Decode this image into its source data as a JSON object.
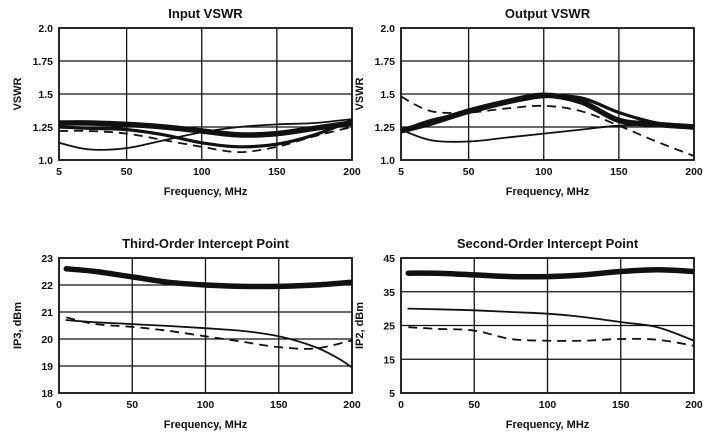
{
  "chart_data": [
    {
      "type": "line",
      "title": "Input VSWR",
      "xlabel": "Frequency, MHz",
      "ylabel": "VSWR",
      "xlim": [
        5,
        200
      ],
      "ylim": [
        1.0,
        2.0
      ],
      "xticks": [
        "5",
        "50",
        "100",
        "150",
        "200"
      ],
      "xtick_values": [
        5,
        50,
        100,
        150,
        200
      ],
      "yticks": [
        "1.0",
        "1.25",
        "1.5",
        "1.75",
        "2.0"
      ],
      "ytick_values": [
        1.0,
        1.25,
        1.5,
        1.75,
        2.0
      ],
      "grid": true,
      "series": [
        {
          "style": "thick",
          "x": [
            5,
            25,
            50,
            75,
            100,
            125,
            150,
            175,
            200
          ],
          "y": [
            1.28,
            1.28,
            1.27,
            1.25,
            1.22,
            1.19,
            1.2,
            1.24,
            1.28
          ]
        },
        {
          "style": "thin",
          "x": [
            5,
            25,
            50,
            75,
            100,
            125,
            150,
            175,
            200
          ],
          "y": [
            1.13,
            1.08,
            1.09,
            1.15,
            1.21,
            1.25,
            1.27,
            1.28,
            1.31
          ]
        },
        {
          "style": "medium",
          "x": [
            5,
            25,
            50,
            75,
            100,
            125,
            150,
            175,
            200
          ],
          "y": [
            1.25,
            1.24,
            1.23,
            1.19,
            1.13,
            1.1,
            1.12,
            1.19,
            1.3
          ]
        },
        {
          "style": "dashed",
          "x": [
            5,
            25,
            50,
            75,
            100,
            125,
            150,
            175,
            200
          ],
          "y": [
            1.22,
            1.22,
            1.2,
            1.15,
            1.1,
            1.06,
            1.1,
            1.18,
            1.25
          ]
        }
      ]
    },
    {
      "type": "line",
      "title": "Output VSWR",
      "xlabel": "Frequency, MHz",
      "ylabel": "VSWR",
      "xlim": [
        5,
        200
      ],
      "ylim": [
        1.0,
        2.0
      ],
      "xticks": [
        "5",
        "50",
        "100",
        "150",
        "200"
      ],
      "xtick_values": [
        5,
        50,
        100,
        150,
        200
      ],
      "yticks": [
        "1.0",
        "1.25",
        "1.5",
        "1.75",
        "2.0"
      ],
      "ytick_values": [
        1.0,
        1.25,
        1.5,
        1.75,
        2.0
      ],
      "grid": true,
      "series": [
        {
          "style": "thick",
          "x": [
            5,
            25,
            50,
            75,
            100,
            125,
            150,
            175,
            200
          ],
          "y": [
            1.22,
            1.28,
            1.37,
            1.44,
            1.49,
            1.44,
            1.3,
            1.27,
            1.25
          ]
        },
        {
          "style": "medium",
          "x": [
            5,
            25,
            50,
            75,
            100,
            125,
            150,
            175,
            200
          ],
          "y": [
            1.22,
            1.3,
            1.36,
            1.43,
            1.48,
            1.47,
            1.36,
            1.28,
            1.24
          ]
        },
        {
          "style": "thin",
          "x": [
            5,
            25,
            50,
            75,
            100,
            125,
            150,
            175,
            200
          ],
          "y": [
            1.23,
            1.15,
            1.14,
            1.17,
            1.2,
            1.23,
            1.26,
            1.26,
            1.24
          ]
        },
        {
          "style": "dashed",
          "x": [
            5,
            25,
            50,
            75,
            100,
            125,
            150,
            175,
            200
          ],
          "y": [
            1.48,
            1.37,
            1.36,
            1.39,
            1.41,
            1.37,
            1.26,
            1.14,
            1.03
          ]
        }
      ]
    },
    {
      "type": "line",
      "title": "Third-Order Intercept Point",
      "xlabel": "Frequency, MHz",
      "ylabel": "IP3, dBm",
      "xlim": [
        0,
        200
      ],
      "ylim": [
        18,
        23
      ],
      "xticks": [
        "0",
        "50",
        "100",
        "150",
        "200"
      ],
      "xtick_values": [
        0,
        50,
        100,
        150,
        200
      ],
      "yticks": [
        "18",
        "19",
        "20",
        "21",
        "22",
        "23"
      ],
      "ytick_values": [
        18,
        19,
        20,
        21,
        22,
        23
      ],
      "grid": true,
      "series": [
        {
          "style": "thick",
          "x": [
            5,
            25,
            50,
            75,
            100,
            125,
            150,
            175,
            200
          ],
          "y": [
            22.6,
            22.5,
            22.3,
            22.1,
            22.0,
            21.95,
            21.95,
            22.0,
            22.1
          ]
        },
        {
          "style": "thin",
          "x": [
            5,
            25,
            50,
            75,
            100,
            125,
            150,
            175,
            190,
            200
          ],
          "y": [
            20.7,
            20.62,
            20.55,
            20.48,
            20.4,
            20.3,
            20.1,
            19.7,
            19.3,
            18.95
          ]
        },
        {
          "style": "dashed",
          "x": [
            5,
            25,
            50,
            75,
            100,
            125,
            150,
            175,
            200
          ],
          "y": [
            20.8,
            20.55,
            20.45,
            20.3,
            20.1,
            19.9,
            19.7,
            19.65,
            19.95
          ]
        }
      ]
    },
    {
      "type": "line",
      "title": "Second-Order Intercept Point",
      "xlabel": "Frequency, MHz",
      "ylabel": "IP2, dBm",
      "xlim": [
        0,
        200
      ],
      "ylim": [
        5,
        45
      ],
      "xticks": [
        "0",
        "50",
        "100",
        "150",
        "200"
      ],
      "xtick_values": [
        0,
        50,
        100,
        150,
        200
      ],
      "yticks": [
        "5",
        "15",
        "25",
        "35",
        "45"
      ],
      "ytick_values": [
        5,
        15,
        25,
        35,
        45
      ],
      "grid": true,
      "series": [
        {
          "style": "thick",
          "x": [
            5,
            25,
            50,
            75,
            100,
            125,
            150,
            175,
            200
          ],
          "y": [
            40.5,
            40.5,
            40.0,
            39.5,
            39.5,
            40.0,
            41.0,
            41.5,
            41.0
          ]
        },
        {
          "style": "thin",
          "x": [
            5,
            25,
            50,
            75,
            100,
            125,
            150,
            175,
            200
          ],
          "y": [
            30.0,
            29.8,
            29.5,
            29.0,
            28.5,
            27.5,
            26.0,
            24.5,
            20.5
          ]
        },
        {
          "style": "dashed",
          "x": [
            5,
            25,
            50,
            75,
            100,
            125,
            150,
            175,
            200
          ],
          "y": [
            24.5,
            24.0,
            23.5,
            21.0,
            20.5,
            20.5,
            21.0,
            20.8,
            19.0
          ]
        }
      ]
    }
  ]
}
